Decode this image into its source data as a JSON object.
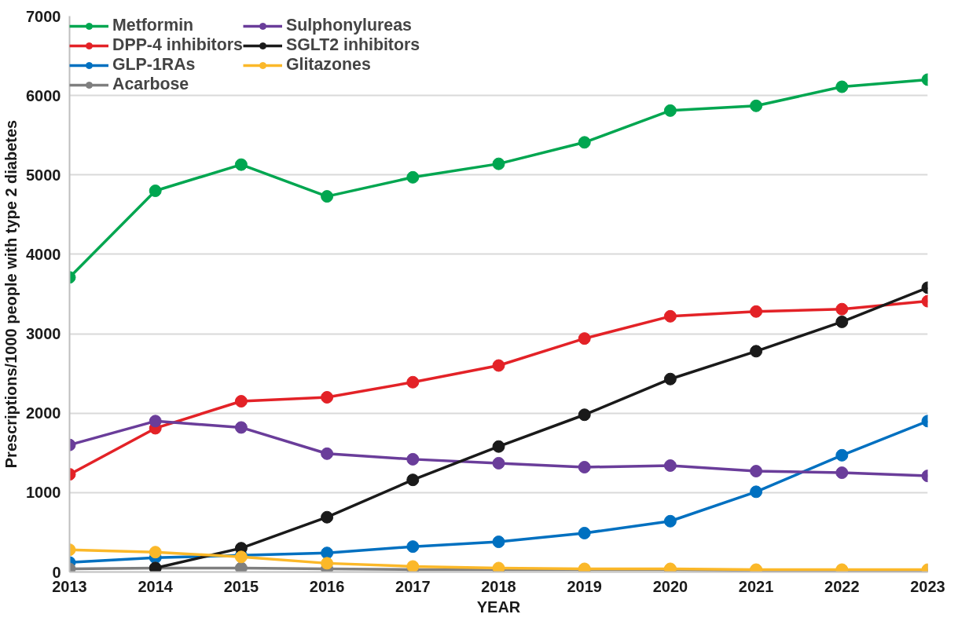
{
  "chart_data": {
    "type": "line",
    "xlabel": "YEAR",
    "ylabel": "Prescriptions/1000 people with type 2 diabetes",
    "x": [
      2013,
      2014,
      2015,
      2016,
      2017,
      2018,
      2019,
      2020,
      2021,
      2022,
      2023
    ],
    "xlim": [
      2013,
      2023
    ],
    "xticks": [
      2013,
      2014,
      2015,
      2016,
      2017,
      2018,
      2019,
      2020,
      2021,
      2022,
      2023
    ],
    "ylim": [
      0,
      7000
    ],
    "yticks": [
      0,
      1000,
      2000,
      3000,
      4000,
      5000,
      6000,
      7000
    ],
    "grid": "y",
    "legend": "top left",
    "marker": "circle",
    "line_style": "solid",
    "series": [
      {
        "name": "Metformin",
        "color": "#00a650",
        "values": [
          3710,
          4800,
          5130,
          4730,
          4970,
          5140,
          5410,
          5810,
          5870,
          6110,
          6200
        ]
      },
      {
        "name": "DPP-4 inhibitors",
        "color": "#e32227",
        "values": [
          1230,
          1810,
          2150,
          2200,
          2390,
          2600,
          2940,
          3220,
          3280,
          3310,
          3410
        ]
      },
      {
        "name": "GLP-1RAs",
        "color": "#0070c0",
        "values": [
          120,
          180,
          210,
          240,
          320,
          380,
          490,
          640,
          1010,
          1470,
          1900
        ]
      },
      {
        "name": "Acarbose",
        "color": "#7f7f7f",
        "values": [
          40,
          50,
          50,
          40,
          30,
          30,
          30,
          30,
          20,
          20,
          20
        ]
      },
      {
        "name": "Sulphonylureas",
        "color": "#6a3d9a",
        "values": [
          1600,
          1900,
          1820,
          1490,
          1420,
          1370,
          1320,
          1340,
          1270,
          1250,
          1210
        ]
      },
      {
        "name": "SGLT2 inhibitors",
        "color": "#1a1a1a",
        "values": [
          null,
          50,
          300,
          690,
          1160,
          1580,
          1980,
          2430,
          2780,
          3150,
          3580
        ]
      },
      {
        "name": "Glitazones",
        "color": "#fbb829",
        "values": [
          280,
          250,
          190,
          110,
          70,
          50,
          40,
          40,
          30,
          30,
          30
        ]
      }
    ]
  }
}
